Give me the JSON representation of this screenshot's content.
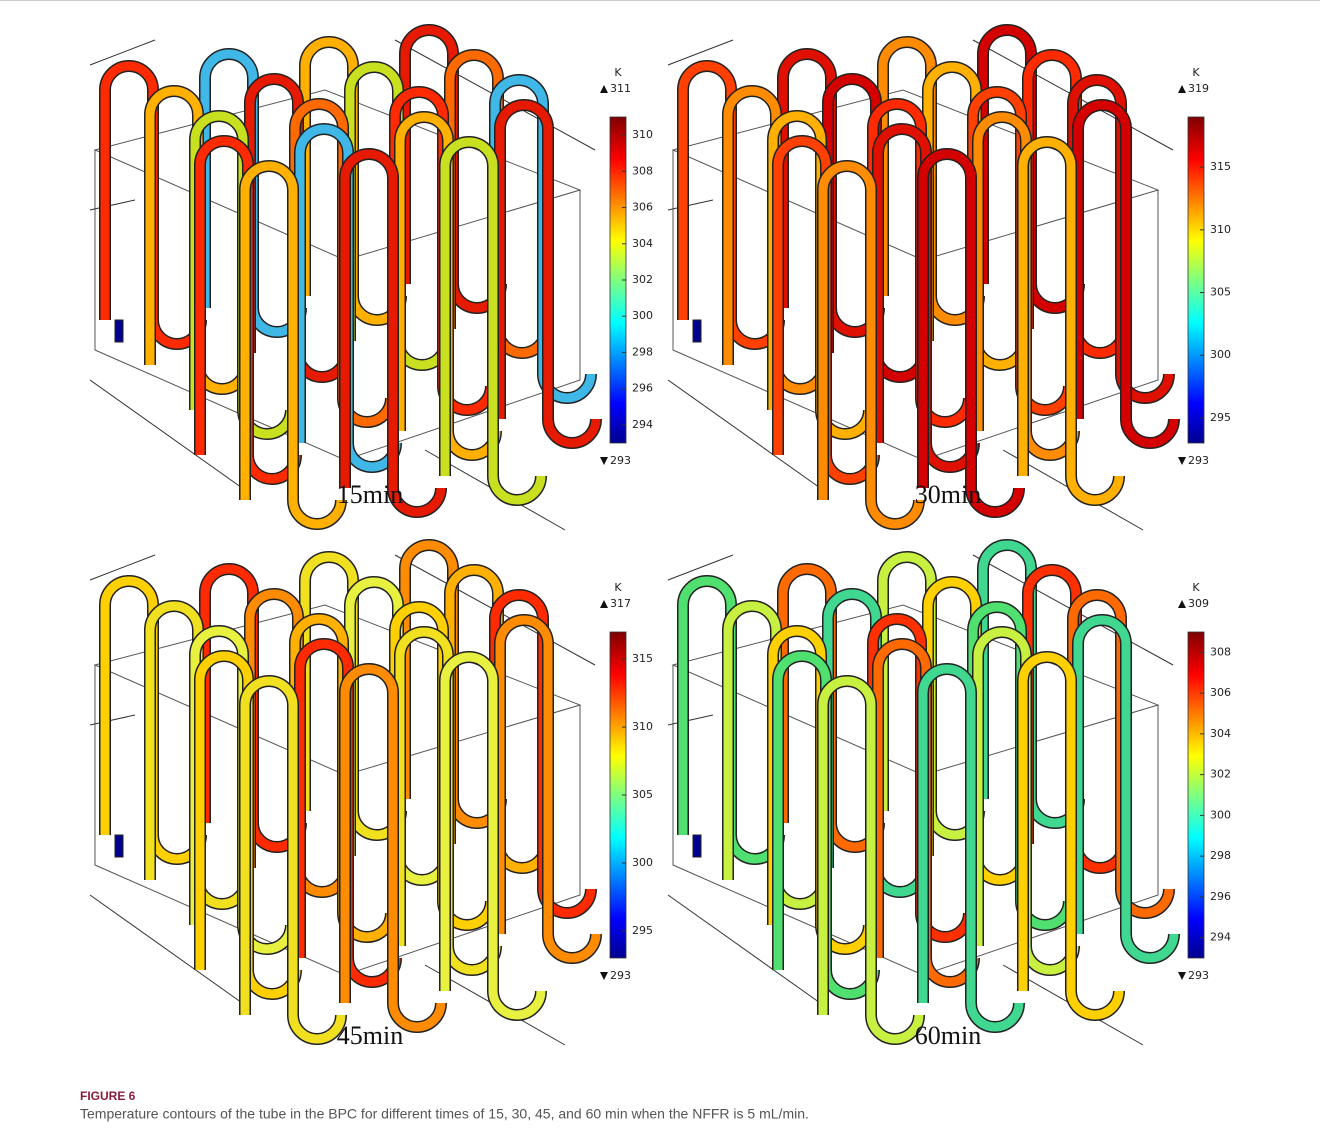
{
  "panels": [
    {
      "label": "15min",
      "colorbar": {
        "unit": "K",
        "max": 311,
        "min": 293,
        "ticks": [
          294,
          296,
          298,
          300,
          302,
          304,
          306,
          308,
          310
        ]
      }
    },
    {
      "label": "30min",
      "colorbar": {
        "unit": "K",
        "max": 319,
        "min": 293,
        "ticks": [
          295,
          300,
          305,
          310,
          315
        ]
      }
    },
    {
      "label": "45min",
      "colorbar": {
        "unit": "K",
        "max": 317,
        "min": 293,
        "ticks": [
          295,
          300,
          305,
          310,
          315
        ]
      }
    },
    {
      "label": "60min",
      "colorbar": {
        "unit": "K",
        "max": 309,
        "min": 293,
        "ticks": [
          294,
          296,
          298,
          300,
          302,
          304,
          306,
          308
        ]
      }
    }
  ],
  "figure": {
    "label": "FIGURE 6",
    "caption": "Temperature contours of the tube in the BPC for different times of 15, 30, 45, and 60 min when the NFFR is 5 mL/min."
  }
}
